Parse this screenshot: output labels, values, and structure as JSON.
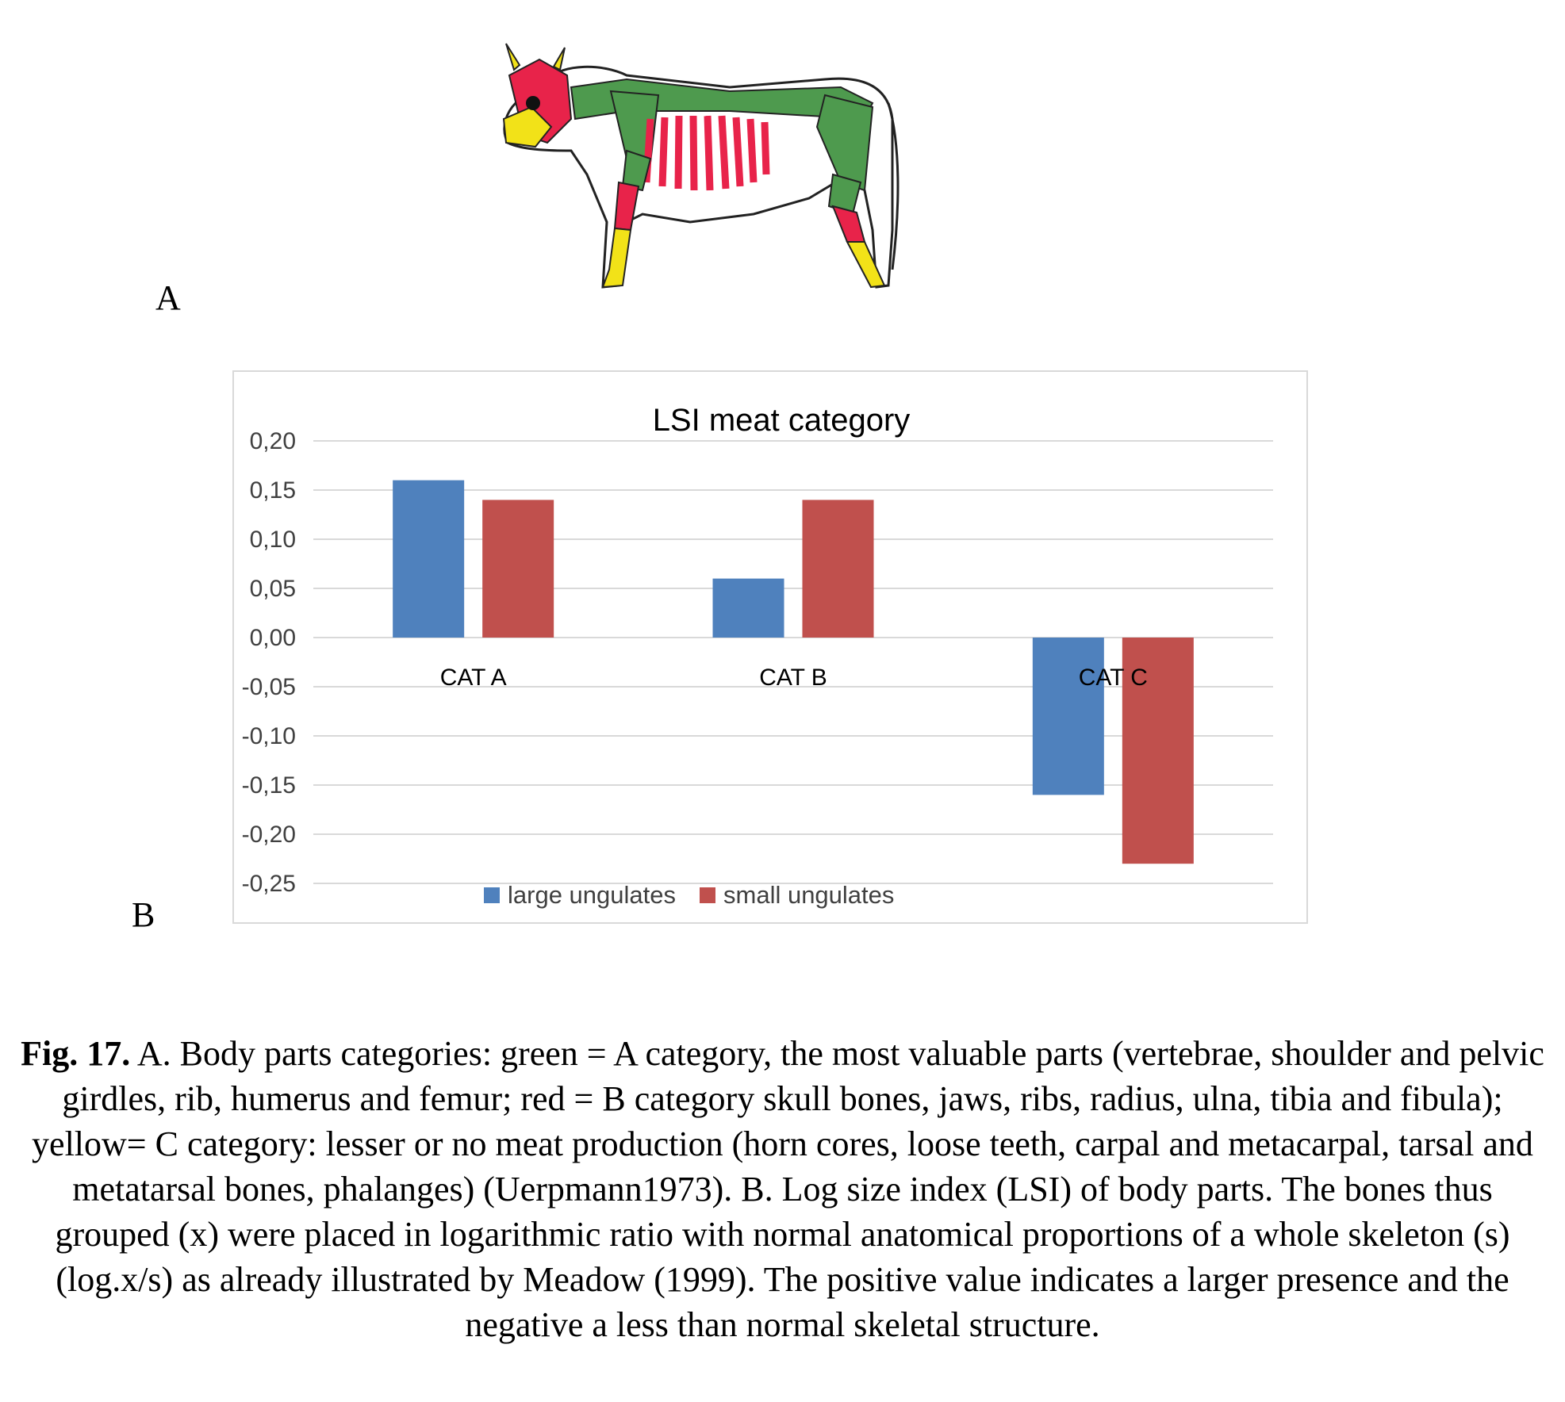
{
  "panel_labels": {
    "a": "A",
    "b": "B"
  },
  "illustration": {
    "name": "cow-skeleton-illustration",
    "colors": {
      "category_a": "#4e9a4e",
      "category_b": "#e8234a",
      "category_c": "#f2e218",
      "outline": "#222222"
    }
  },
  "chart_data": {
    "type": "bar",
    "title": "LSI meat category",
    "categories": [
      "CAT A",
      "CAT B",
      "CAT C"
    ],
    "series": [
      {
        "name": "large ungulates",
        "color": "#4f81bd",
        "values": [
          0.16,
          0.06,
          -0.16
        ]
      },
      {
        "name": "small ungulates",
        "color": "#c0504d",
        "values": [
          0.14,
          0.14,
          -0.23
        ]
      }
    ],
    "ylim": [
      -0.25,
      0.2
    ],
    "yticks": [
      0.2,
      0.15,
      0.1,
      0.05,
      0.0,
      -0.05,
      -0.1,
      -0.15,
      -0.2,
      -0.25
    ],
    "ytick_labels": [
      "0,20",
      "0,15",
      "0,10",
      "0,05",
      "0,00",
      "-0,05",
      "-0,10",
      "-0,15",
      "-0,20",
      "-0,25"
    ],
    "grid": true,
    "legend": "bottom",
    "xlabel": "",
    "ylabel": ""
  },
  "caption": {
    "label": "Fig. 17.",
    "text": "A. Body parts categories: green = A category, the most valuable parts (vertebrae, shoulder and pelvic girdles, rib, humerus and femur; red = B category skull bones, jaws, ribs, radius, ulna, tibia and fibula); yellow= C category: lesser or no meat production (horn cores, loose teeth, carpal and metacarpal, tarsal and metatarsal bones, phalanges) (Uerpmann1973). B. Log size index (LSI) of body parts. The bones thus grouped (x) were placed in logarithmic ratio with normal anatomical proportions of a whole skeleton (s) (log.x/s) as already illustrated by Meadow (1999). The positive value indicates a larger presence and the negative a less than normal skeletal structure."
  }
}
